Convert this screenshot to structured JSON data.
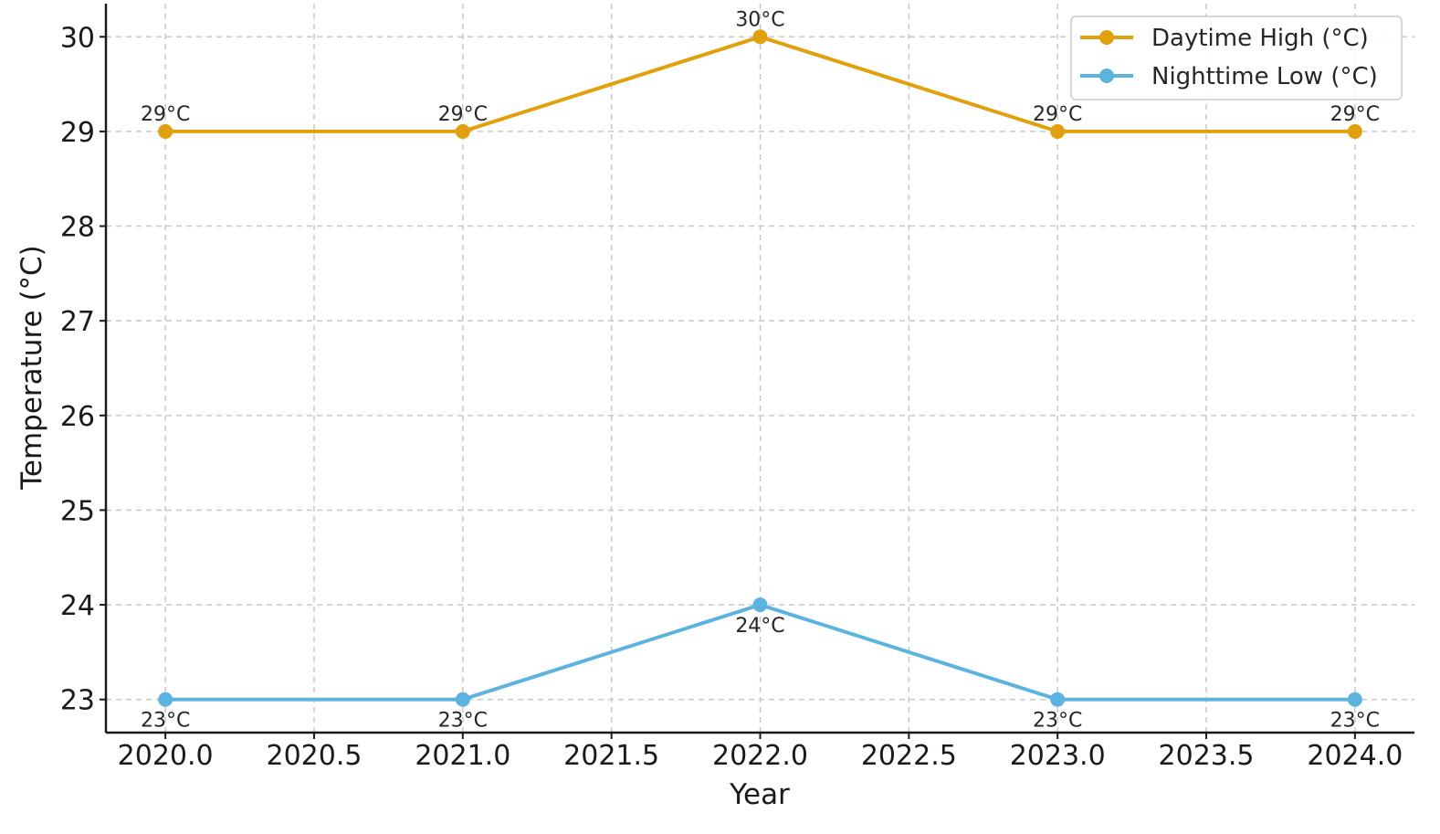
{
  "chart_data": {
    "type": "line",
    "title": "",
    "xlabel": "Year",
    "ylabel": "Temperature (°C)",
    "x": [
      2020,
      2021,
      2022,
      2023,
      2024
    ],
    "xlim": [
      2019.8,
      2024.2
    ],
    "ylim": [
      22.65,
      30.35
    ],
    "xticks": [
      2020.0,
      2020.5,
      2021.0,
      2021.5,
      2022.0,
      2022.5,
      2023.0,
      2023.5,
      2024.0
    ],
    "xtick_labels": [
      "2020.0",
      "2020.5",
      "2021.0",
      "2021.5",
      "2022.0",
      "2022.5",
      "2023.0",
      "2023.5",
      "2024.0"
    ],
    "yticks": [
      23,
      24,
      25,
      26,
      27,
      28,
      29,
      30
    ],
    "ytick_labels": [
      "23",
      "24",
      "25",
      "26",
      "27",
      "28",
      "29",
      "30"
    ],
    "grid": true,
    "legend_position": "top-right",
    "series": [
      {
        "name": "Daytime High (°C)",
        "color": "#E1A00E",
        "values": [
          29,
          29,
          30,
          29,
          29
        ],
        "labels": [
          "29°C",
          "29°C",
          "30°C",
          "29°C",
          "29°C"
        ],
        "label_position": "above"
      },
      {
        "name": "Nighttime Low (°C)",
        "color": "#5DB3DF",
        "values": [
          23,
          23,
          24,
          23,
          23
        ],
        "labels": [
          "23°C",
          "23°C",
          "24°C",
          "23°C",
          "23°C"
        ],
        "label_position": "below"
      }
    ]
  }
}
